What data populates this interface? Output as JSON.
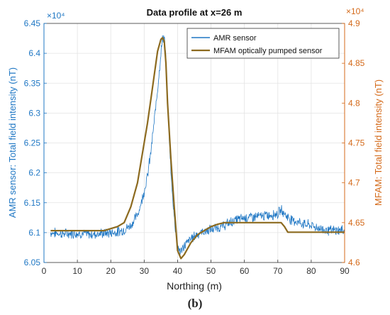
{
  "chart_data": {
    "type": "line",
    "title": "Data profile at x=26 m",
    "xlabel": "Northing (m)",
    "ylabel_left": "AMR sensor: Total field intensity (nT)",
    "ylabel_right": "MFAM: Total field intensity (nT)",
    "xlim": [
      0,
      90
    ],
    "ylim_left": [
      60500,
      64500
    ],
    "ylim_right": [
      46000,
      49000
    ],
    "x_ticks": [
      "0",
      "10",
      "20",
      "30",
      "40",
      "50",
      "60",
      "70",
      "80",
      "90"
    ],
    "y_left_ticks": [
      "6.05",
      "6.1",
      "6.15",
      "6.2",
      "6.25",
      "6.3",
      "6.35",
      "6.4",
      "6.45"
    ],
    "y_left_multiplier": "×10⁴",
    "y_right_ticks": [
      "4.6",
      "4.65",
      "4.7",
      "4.75",
      "4.8",
      "4.85",
      "4.9"
    ],
    "y_right_multiplier": "×10⁴",
    "grid": true,
    "legend_position": "top-right",
    "colors": {
      "amr": "#1f77c4",
      "mfam": "#8c6a1f",
      "left_axis": "#1f77c4",
      "right_axis": "#d46a1a"
    },
    "series": [
      {
        "name": "AMR sensor",
        "axis": "left",
        "x": [
          2,
          6,
          10,
          14,
          18,
          22,
          24,
          26,
          28,
          29,
          30,
          31,
          32,
          33,
          34,
          35,
          35.5,
          36,
          36.5,
          37,
          38,
          39,
          40,
          41,
          42,
          44,
          46,
          48,
          50,
          52,
          54,
          56,
          58,
          60,
          62,
          64,
          66,
          68,
          70,
          71,
          72,
          73,
          74,
          76,
          78,
          80,
          82,
          84,
          86,
          88,
          90
        ],
        "y": [
          61000,
          60980,
          60990,
          60970,
          60990,
          61010,
          61050,
          61120,
          61300,
          61480,
          61700,
          61950,
          62350,
          62850,
          63400,
          64000,
          64250,
          64280,
          63900,
          63200,
          62000,
          61250,
          60750,
          60680,
          60780,
          60900,
          60980,
          61020,
          61050,
          61080,
          61120,
          61180,
          61220,
          61250,
          61260,
          61270,
          61280,
          61300,
          61320,
          61380,
          61320,
          61260,
          61220,
          61180,
          61140,
          61120,
          61080,
          61050,
          61030,
          61040,
          61040
        ]
      },
      {
        "name": "MFAM optically pumped sensor",
        "axis": "right",
        "x": [
          2,
          6,
          10,
          14,
          18,
          22,
          24,
          26,
          28,
          29,
          30,
          31,
          32,
          33,
          34,
          35,
          35.5,
          36,
          36.5,
          37,
          38,
          39,
          40,
          41,
          42,
          44,
          46,
          48,
          50,
          52,
          54,
          56,
          58,
          60,
          62,
          64,
          66,
          68,
          70,
          71,
          72,
          73,
          74,
          76,
          78,
          80,
          82,
          84,
          86,
          88,
          90
        ],
        "y": [
          46400,
          46400,
          46400,
          46400,
          46400,
          46450,
          46500,
          46700,
          47000,
          47250,
          47500,
          47750,
          48050,
          48350,
          48650,
          48800,
          48820,
          48780,
          48500,
          48000,
          47300,
          46700,
          46150,
          46050,
          46100,
          46250,
          46350,
          46400,
          46450,
          46480,
          46500,
          46500,
          46500,
          46500,
          46500,
          46500,
          46500,
          46500,
          46500,
          46500,
          46450,
          46380,
          46380,
          46380,
          46380,
          46380,
          46380,
          46380,
          46380,
          46380,
          46380
        ]
      }
    ]
  },
  "caption": "(b)"
}
